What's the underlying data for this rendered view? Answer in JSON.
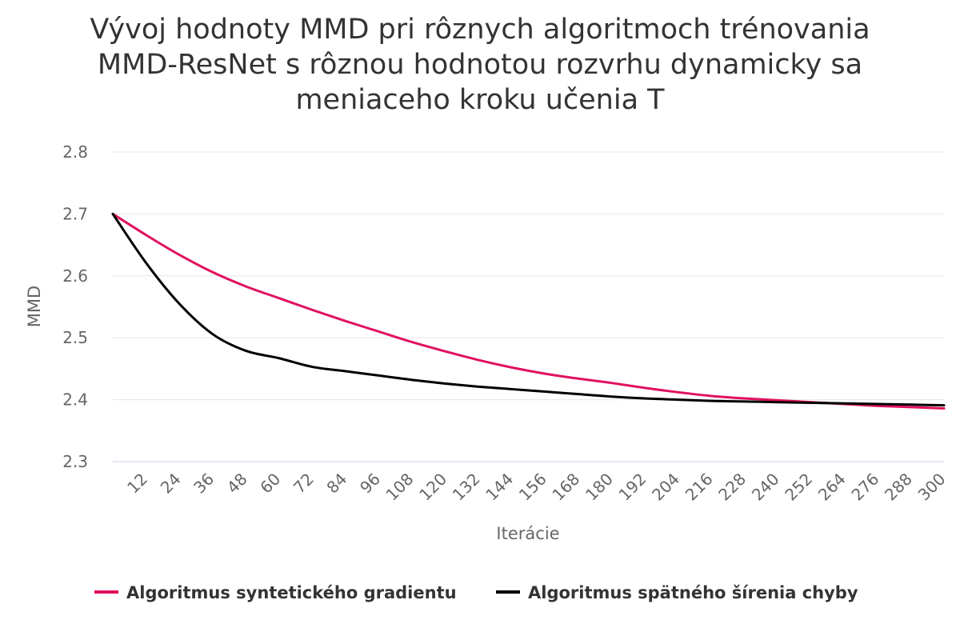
{
  "chart_data": {
    "type": "line",
    "title_lines": [
      "Vývoj hodnoty MMD pri rôznych algoritmoch trénovania",
      "MMD-ResNet s rôznou hodnotou rozvrhu dynamicky sa",
      "meniaceho kroku učenia T"
    ],
    "xlabel": "Iterácie",
    "ylabel": "MMD",
    "xlim": [
      0,
      300
    ],
    "ylim": [
      2.3,
      2.8
    ],
    "yticks": [
      2.3,
      2.4,
      2.5,
      2.6,
      2.7,
      2.8
    ],
    "ytick_labels": [
      "2.3",
      "2.4",
      "2.5",
      "2.6",
      "2.7",
      "2.8"
    ],
    "xticks": [
      12,
      24,
      36,
      48,
      60,
      72,
      84,
      96,
      108,
      120,
      132,
      144,
      156,
      168,
      180,
      192,
      204,
      216,
      228,
      240,
      252,
      264,
      276,
      288,
      300
    ],
    "xtick_labels": [
      "12",
      "24",
      "36",
      "48",
      "60",
      "72",
      "84",
      "96",
      "108",
      "120",
      "132",
      "144",
      "156",
      "168",
      "180",
      "192",
      "204",
      "216",
      "228",
      "240",
      "252",
      "264",
      "276",
      "288",
      "300"
    ],
    "grid": true,
    "legend_position": "bottom",
    "x": [
      0,
      12,
      24,
      36,
      48,
      60,
      72,
      84,
      96,
      108,
      120,
      132,
      144,
      156,
      168,
      180,
      192,
      204,
      216,
      228,
      240,
      252,
      264,
      276,
      288,
      300
    ],
    "series": [
      {
        "name": "Algoritmus syntetického gradientu",
        "color": "#e0115f",
        "values": [
          2.7,
          2.666,
          2.634,
          2.606,
          2.583,
          2.564,
          2.545,
          2.527,
          2.51,
          2.493,
          2.478,
          2.464,
          2.452,
          2.442,
          2.434,
          2.427,
          2.419,
          2.412,
          2.406,
          2.402,
          2.399,
          2.396,
          2.393,
          2.39,
          2.388,
          2.386
        ]
      },
      {
        "name": "Algoritmus spätného šírenia chyby",
        "color": "#000000",
        "values": [
          2.7,
          2.621,
          2.555,
          2.506,
          2.479,
          2.467,
          2.453,
          2.446,
          2.439,
          2.432,
          2.426,
          2.421,
          2.417,
          2.413,
          2.409,
          2.405,
          2.402,
          2.4,
          2.398,
          2.397,
          2.396,
          2.395,
          2.394,
          2.393,
          2.392,
          2.391
        ]
      }
    ]
  }
}
